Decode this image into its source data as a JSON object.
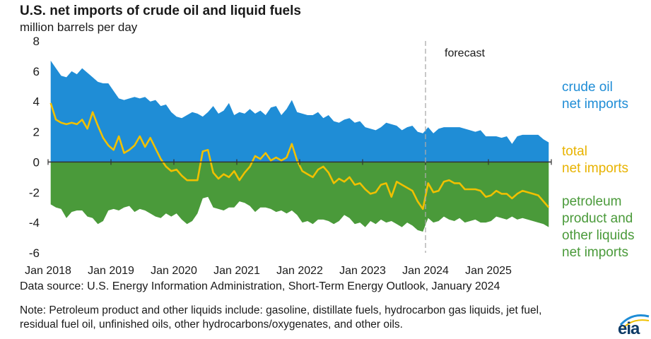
{
  "title": "U.S. net imports of crude oil and liquid fuels",
  "units": "million barrels per day",
  "labels": {
    "crude": [
      "crude oil",
      "net imports"
    ],
    "total": [
      "total",
      "net imports"
    ],
    "products": [
      "petroleum",
      "product and",
      "other liquids",
      "net imports"
    ]
  },
  "forecast_label": "forecast",
  "source": "Data source: U.S. Energy Information Administration, Short-Term Energy Outlook, January 2024",
  "note": "Note: Petroleum product and other liquids include: gasoline, distillate fuels, hydrocarbon gas liquids, jet fuel, residual fuel oil, unfinished oils, other hydrocarbons/oxygenates, and other oils.",
  "logo": "eia",
  "colors": {
    "crude": "#1f8dd6",
    "products": "#4a9a3a",
    "total": "#f0c000",
    "axis": "#333333",
    "forecast_line": "#aaaaaa"
  },
  "chart_data": {
    "type": "area",
    "x_start": "Jan 2018",
    "x_end": "Dec 2025",
    "forecast_start": "Jan 2024",
    "ylim": [
      -6,
      8
    ],
    "yticks": [
      -6,
      -4,
      -2,
      0,
      2,
      4,
      6,
      8
    ],
    "xticks": [
      "Jan 2018",
      "Jan 2019",
      "Jan 2020",
      "Jan 2021",
      "Jan 2022",
      "Jan 2023",
      "Jan 2024",
      "Jan 2025"
    ],
    "series": [
      {
        "name": "crude oil net imports",
        "color": "#1f8dd6",
        "values": [
          6.7,
          6.2,
          5.7,
          5.6,
          6.0,
          5.8,
          6.2,
          5.9,
          5.6,
          5.3,
          5.2,
          5.2,
          4.7,
          4.2,
          4.1,
          4.2,
          4.3,
          4.2,
          4.3,
          4.0,
          4.1,
          3.7,
          3.8,
          3.3,
          3.0,
          2.9,
          3.1,
          3.3,
          3.2,
          3.0,
          3.3,
          3.7,
          3.2,
          3.4,
          3.9,
          3.1,
          3.3,
          3.2,
          3.5,
          3.2,
          3.4,
          3.1,
          3.6,
          3.7,
          3.1,
          3.5,
          4.1,
          3.3,
          3.2,
          3.1,
          3.1,
          3.3,
          2.9,
          3.1,
          2.7,
          2.6,
          2.8,
          2.9,
          2.6,
          2.7,
          2.3,
          2.2,
          2.1,
          2.3,
          2.6,
          2.5,
          2.4,
          2.1,
          2.3,
          2.4,
          2.0,
          1.9,
          2.3,
          1.9,
          2.2,
          2.3,
          2.3,
          2.3,
          2.3,
          2.2,
          2.1,
          2.0,
          2.1,
          1.7,
          1.7,
          1.7,
          1.6,
          1.7,
          1.2,
          1.7,
          1.8,
          1.8,
          1.8,
          1.8,
          1.5,
          1.3
        ]
      },
      {
        "name": "petroleum product and other liquids net imports",
        "color": "#4a9a3a",
        "values": [
          -2.8,
          -3.0,
          -3.1,
          -3.7,
          -3.3,
          -3.2,
          -3.2,
          -3.6,
          -3.7,
          -4.1,
          -3.9,
          -3.2,
          -3.1,
          -3.2,
          -3.0,
          -2.9,
          -3.3,
          -3.1,
          -3.2,
          -3.4,
          -3.6,
          -3.7,
          -3.4,
          -3.6,
          -3.4,
          -3.8,
          -4.1,
          -3.9,
          -3.4,
          -2.4,
          -2.3,
          -3.0,
          -3.1,
          -3.2,
          -3.0,
          -3.0,
          -2.6,
          -2.7,
          -2.9,
          -3.3,
          -3.0,
          -3.0,
          -3.1,
          -3.3,
          -3.2,
          -3.4,
          -3.2,
          -3.5,
          -4.0,
          -3.9,
          -4.1,
          -3.8,
          -3.8,
          -3.9,
          -4.1,
          -3.9,
          -3.5,
          -3.7,
          -4.1,
          -4.0,
          -4.3,
          -3.9,
          -4.1,
          -3.8,
          -4.0,
          -3.9,
          -4.1,
          -4.3,
          -4.0,
          -4.2,
          -4.5,
          -4.6,
          -3.7,
          -4.0,
          -3.9,
          -3.6,
          -3.8,
          -3.9,
          -3.7,
          -4.0,
          -3.9,
          -3.8,
          -4.0,
          -4.0,
          -3.9,
          -3.6,
          -3.7,
          -3.8,
          -3.6,
          -3.8,
          -3.7,
          -3.8,
          -3.9,
          -4.0,
          -4.1,
          -4.3
        ]
      },
      {
        "name": "total net imports",
        "color": "#f0c000",
        "values": [
          3.9,
          2.8,
          2.6,
          2.5,
          2.6,
          2.5,
          2.8,
          2.2,
          3.3,
          2.4,
          1.6,
          1.1,
          0.8,
          1.7,
          0.6,
          0.8,
          1.1,
          1.7,
          1.0,
          1.6,
          0.9,
          0.2,
          -0.3,
          -0.6,
          -0.5,
          -0.9,
          -1.2,
          -1.2,
          -1.2,
          0.7,
          0.8,
          -0.7,
          -1.1,
          -0.8,
          -1.0,
          -0.6,
          -1.2,
          -0.7,
          -0.3,
          0.4,
          0.2,
          0.6,
          0.1,
          0.3,
          0.1,
          0.3,
          1.2,
          0.1,
          -0.6,
          -0.8,
          -1.0,
          -0.5,
          -0.3,
          -0.7,
          -1.4,
          -1.1,
          -1.3,
          -1.0,
          -1.5,
          -1.4,
          -1.8,
          -2.1,
          -2.0,
          -1.5,
          -1.4,
          -2.3,
          -1.3,
          -1.5,
          -1.7,
          -1.9,
          -2.6,
          -3.1,
          -1.4,
          -2.0,
          -1.9,
          -1.3,
          -1.2,
          -1.4,
          -1.4,
          -1.8,
          -1.8,
          -1.8,
          -1.9,
          -2.3,
          -2.2,
          -1.9,
          -2.1,
          -2.1,
          -2.4,
          -2.1,
          -1.9,
          -2.0,
          -2.1,
          -2.2,
          -2.6,
          -3.0
        ]
      }
    ]
  }
}
